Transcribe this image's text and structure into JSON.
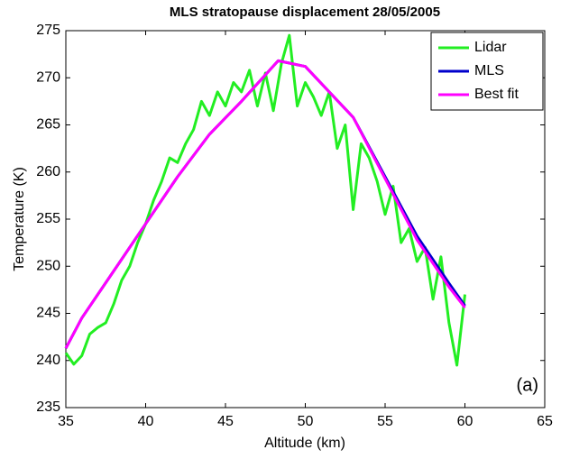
{
  "chart_data": {
    "type": "line",
    "title": "MLS stratopause displacement 28/05/2005",
    "x_label": "Altitude (km)",
    "y_label": "Temperature (K)",
    "annotation": "(a)",
    "legend": "upper right",
    "xlim": [
      35,
      65
    ],
    "xticks": [
      35,
      40,
      45,
      50,
      55,
      60,
      65
    ],
    "ylim": [
      235,
      275
    ],
    "yticks": [
      235,
      240,
      245,
      250,
      255,
      260,
      265,
      270,
      275
    ],
    "series": [
      {
        "name": "Lidar",
        "color": "#22ee22",
        "x": [
          35,
          35.5,
          36,
          36.5,
          37,
          37.5,
          38,
          38.5,
          39,
          39.5,
          40,
          40.5,
          41,
          41.5,
          42,
          42.5,
          43,
          43.5,
          44,
          44.5,
          45,
          45.5,
          46,
          46.5,
          47,
          47.5,
          48,
          48.5,
          49,
          49.5,
          50,
          50.5,
          51,
          51.5,
          52,
          52.5,
          53,
          53.5,
          54,
          54.5,
          55,
          55.5,
          56,
          56.5,
          57,
          57.5,
          58,
          58.5,
          59,
          59.5,
          60
        ],
        "values": [
          240.8,
          239.6,
          240.5,
          242.8,
          243.5,
          244,
          246,
          248.5,
          250,
          252.5,
          254.5,
          257,
          259,
          261.5,
          261,
          263,
          264.5,
          267.5,
          266,
          268.5,
          267,
          269.5,
          268.5,
          270.8,
          267,
          270.5,
          266.5,
          271.5,
          274.5,
          267,
          269.5,
          268,
          266,
          268.5,
          262.5,
          265,
          256,
          263,
          261.5,
          259,
          255.5,
          258.5,
          252.5,
          254,
          250.5,
          252,
          246.5,
          251,
          244,
          239.5,
          247
        ]
      },
      {
        "name": "MLS",
        "color": "#0000cc",
        "x": [
          35,
          36,
          38,
          40,
          42,
          44,
          46,
          48.3,
          50,
          53,
          55,
          57,
          59,
          60
        ],
        "values": [
          241.3,
          244.5,
          249.5,
          254.5,
          259.5,
          264,
          267.5,
          271.8,
          271.2,
          265.8,
          259.5,
          253.2,
          248.2,
          245.8
        ]
      },
      {
        "name": "Best fit",
        "color": "#ff00ff",
        "x": [
          35,
          36,
          38,
          40,
          42,
          44,
          46,
          48.3,
          50,
          53,
          55,
          57,
          59,
          60
        ],
        "values": [
          241.3,
          244.5,
          249.5,
          254.5,
          259.5,
          264,
          267.5,
          271.8,
          271.2,
          265.8,
          259.3,
          252.8,
          247.8,
          245.6
        ]
      }
    ]
  }
}
